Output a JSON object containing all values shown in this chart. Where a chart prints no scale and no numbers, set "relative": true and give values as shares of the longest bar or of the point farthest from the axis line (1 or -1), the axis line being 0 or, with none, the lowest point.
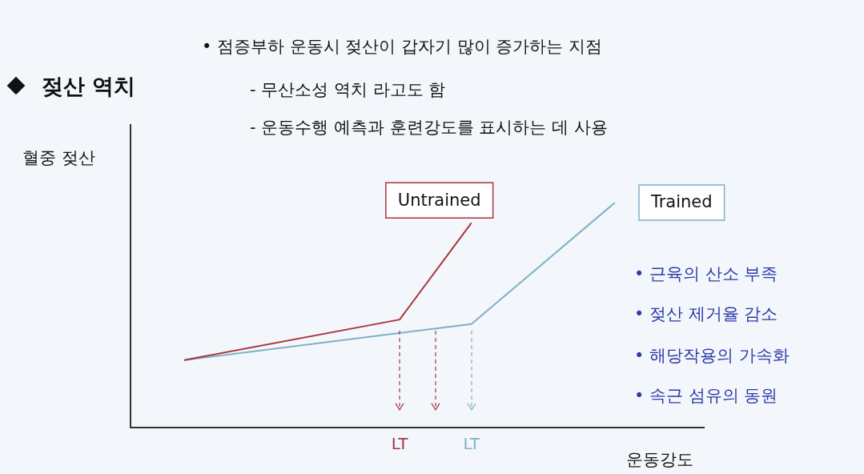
{
  "chart_data": {
    "type": "line",
    "title": "젖산 역치",
    "xlabel": "운동강도",
    "ylabel": "혈중 젖산",
    "relative": true,
    "tick_labels": "x",
    "legend": false,
    "marker": "none",
    "line_style": "solid",
    "categories": [
      null,
      null,
      null,
      null,
      null,
      null,
      null,
      "LT",
      null,
      "LT",
      null,
      null,
      null,
      null,
      null,
      null
    ],
    "series": [
      {
        "name": "Untrained",
        "color": "#a8353f",
        "values": [
          null,
          0.3,
          null,
          null,
          null,
          null,
          null,
          0.48,
          null,
          0.91,
          null,
          null,
          null,
          null,
          null,
          null
        ]
      },
      {
        "name": "Trained",
        "color": "#7fb0c8",
        "values": [
          null,
          0.3,
          null,
          null,
          null,
          null,
          null,
          null,
          null,
          0.46,
          null,
          null,
          null,
          1,
          null,
          null
        ]
      }
    ],
    "annotations": [
      "• 점증부하 운동시 젖산이 갑자기 많이 증가하는 지점",
      "- 무산소성 역치 라고도 함",
      "- 운동수행 예측과 훈련강도를 표시하는 데 사용",
      "• 근육의 산소 부족",
      "• 젖산 제거율 감소",
      "• 해당작용의 가속화",
      "• 속근 섬유의 동원"
    ]
  }
}
